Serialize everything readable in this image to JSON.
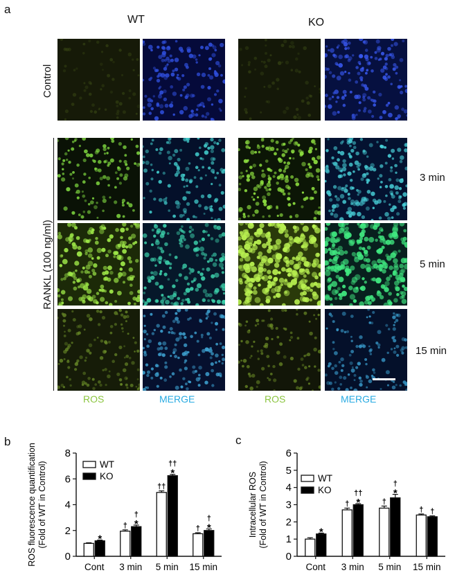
{
  "figure": {
    "panel_a": "a",
    "panel_b": "b",
    "panel_c": "c",
    "group_wt": "WT",
    "group_ko": "KO",
    "row_control": "Control",
    "row_rankl": "RANKL (100 ng/ml)",
    "times": [
      "3 min",
      "5 min",
      "15 min"
    ],
    "col_labels": [
      "ROS",
      "MERGE",
      "ROS",
      "MERGE"
    ],
    "colors": {
      "ros_text": "#8bc53f",
      "merge_text": "#29abe2",
      "bar_wt": "#ffffff",
      "bar_ko": "#000000"
    }
  },
  "chart_data": [
    {
      "type": "bar",
      "panel": "b",
      "ylabel": "ROS fluorescence quantification (Fold of WT in Control)",
      "ylabel_lines": [
        "ROS fluorescence quantification",
        "(Fold of WT in Control)"
      ],
      "categories": [
        "Cont",
        "3 min",
        "5 min",
        "15 min"
      ],
      "ylim": [
        0,
        8
      ],
      "yticks": [
        "0",
        "2",
        "4",
        "6",
        "8"
      ],
      "series": [
        {
          "name": "WT",
          "values": [
            1.0,
            1.95,
            4.95,
            1.75
          ],
          "errors": [
            0.05,
            0.1,
            0.12,
            0.08
          ]
        },
        {
          "name": "KO",
          "values": [
            1.2,
            2.3,
            6.25,
            2.0
          ],
          "errors": [
            0.06,
            0.12,
            0.1,
            0.12
          ]
        }
      ],
      "annotations": [
        {
          "category": "Cont",
          "series": "KO",
          "marks": [
            "*"
          ]
        },
        {
          "category": "3 min",
          "series": "WT",
          "marks": [
            "†"
          ]
        },
        {
          "category": "3 min",
          "series": "KO",
          "marks": [
            "†",
            "*"
          ]
        },
        {
          "category": "5 min",
          "series": "WT",
          "marks": [
            "††"
          ]
        },
        {
          "category": "5 min",
          "series": "KO",
          "marks": [
            "††",
            "*"
          ]
        },
        {
          "category": "15 min",
          "series": "WT",
          "marks": [
            "†"
          ]
        },
        {
          "category": "15 min",
          "series": "KO",
          "marks": [
            "†",
            "*"
          ]
        }
      ],
      "legend": "top-left"
    },
    {
      "type": "bar",
      "panel": "c",
      "ylabel": "Intracellular ROS (Fold of WT in Control)",
      "ylabel_lines": [
        "Intracellular ROS",
        "(Fold of WT in Control)"
      ],
      "categories": [
        "Cont",
        "3 min",
        "5 min",
        "15 min"
      ],
      "ylim": [
        0,
        6
      ],
      "yticks": [
        "0",
        "1",
        "2",
        "3",
        "4",
        "5",
        "6"
      ],
      "series": [
        {
          "name": "WT",
          "values": [
            1.0,
            2.7,
            2.8,
            2.4
          ],
          "errors": [
            0.08,
            0.1,
            0.12,
            0.06
          ]
        },
        {
          "name": "KO",
          "values": [
            1.3,
            3.0,
            3.4,
            2.3
          ],
          "errors": [
            0.05,
            0.06,
            0.2,
            0.05
          ]
        }
      ],
      "annotations": [
        {
          "category": "Cont",
          "series": "KO",
          "marks": [
            "*"
          ]
        },
        {
          "category": "3 min",
          "series": "WT",
          "marks": [
            "†"
          ]
        },
        {
          "category": "3 min",
          "series": "KO",
          "marks": [
            "††",
            "*"
          ]
        },
        {
          "category": "5 min",
          "series": "WT",
          "marks": [
            "†"
          ]
        },
        {
          "category": "5 min",
          "series": "KO",
          "marks": [
            "†",
            "*"
          ]
        },
        {
          "category": "15 min",
          "series": "WT",
          "marks": [
            "†"
          ]
        },
        {
          "category": "15 min",
          "series": "KO",
          "marks": [
            "†"
          ]
        }
      ],
      "legend": "top-left"
    }
  ]
}
